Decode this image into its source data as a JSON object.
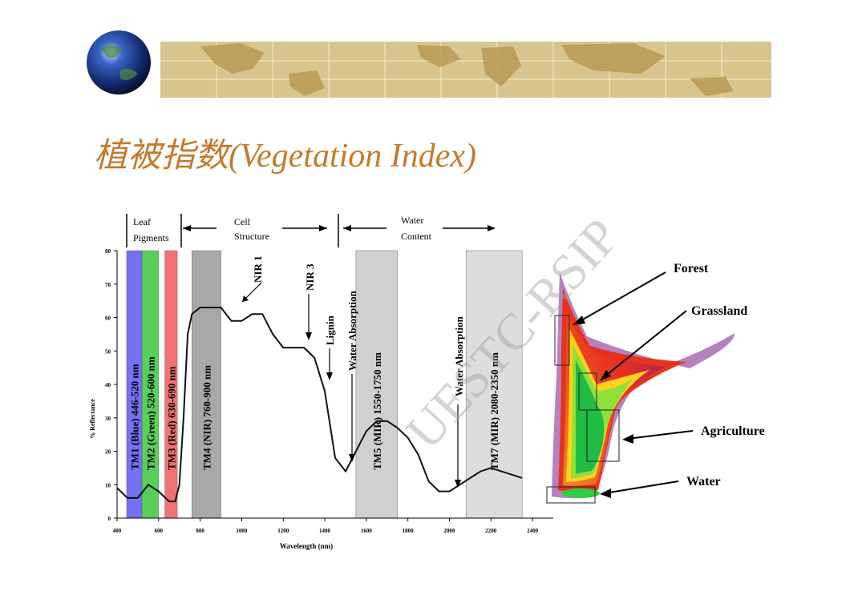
{
  "slide": {
    "title": "植被指数(Vegetation Index)",
    "watermark": "UESTC-RSIP"
  },
  "header_bands": {
    "leaf_pigments": [
      "Leaf",
      "Pigments"
    ],
    "cell_structure": [
      "Cell",
      "Structure"
    ],
    "water_content": [
      "Water",
      "Content"
    ]
  },
  "annotations": {
    "nir1": "NIR 1",
    "nir3": "NIR 3",
    "lignin": "Lignin",
    "water_abs_1": "Water Absorption",
    "water_abs_2": "Water Absorption"
  },
  "bands": [
    {
      "label": "TM1 (Blue) 446-520 nm",
      "range": [
        446,
        520
      ],
      "color": "#5a5af0"
    },
    {
      "label": "TM2 (Green) 520-600 nm",
      "range": [
        520,
        600
      ],
      "color": "#3cc83c"
    },
    {
      "label": "TM3 (Red) 630-690 nm",
      "range": [
        630,
        690
      ],
      "color": "#f05a5a"
    },
    {
      "label": "TM4 (NIR) 760-900 nm",
      "range": [
        760,
        900
      ],
      "color": "#9a9a9a"
    },
    {
      "label": "TM5 (MIR) 1550-1750 nm",
      "range": [
        1550,
        1750
      ],
      "color": "#c8c8c8"
    },
    {
      "label": "TM7 (MIR) 2080-2350 nm",
      "range": [
        2080,
        2350
      ],
      "color": "#d8d8d8"
    }
  ],
  "chart_data": [
    {
      "type": "line",
      "xlabel": "Wavelength (nm)",
      "ylabel": "% Reflectance",
      "xlim": [
        400,
        2500
      ],
      "ylim": [
        0,
        80
      ],
      "xticks": [
        400,
        600,
        800,
        1000,
        1200,
        1400,
        1600,
        1800,
        2000,
        2200,
        2400
      ],
      "yticks": [
        0,
        10,
        20,
        30,
        40,
        50,
        60,
        70,
        80
      ],
      "series": [
        {
          "x": [
            400,
            450,
            500,
            550,
            600,
            650,
            680,
            700,
            720,
            740,
            760,
            800,
            900,
            950,
            1000,
            1050,
            1100,
            1150,
            1200,
            1250,
            1300,
            1350,
            1400,
            1450,
            1500,
            1550,
            1600,
            1650,
            1700,
            1750,
            1800,
            1850,
            1900,
            1950,
            2000,
            2050,
            2100,
            2150,
            2200,
            2250,
            2300,
            2350
          ],
          "y": [
            9,
            6,
            6,
            10,
            8,
            5,
            5,
            10,
            30,
            55,
            61,
            63,
            63,
            59,
            59,
            61,
            61,
            55,
            51,
            51,
            51,
            48,
            38,
            18,
            14,
            20,
            26,
            29,
            29,
            27,
            24,
            19,
            11,
            8,
            8,
            10,
            12,
            14,
            15,
            14,
            13,
            12
          ]
        }
      ]
    },
    {
      "type": "scatter",
      "labels": [
        "Forest",
        "Grassland",
        "Agriculture",
        "Water"
      ]
    }
  ]
}
